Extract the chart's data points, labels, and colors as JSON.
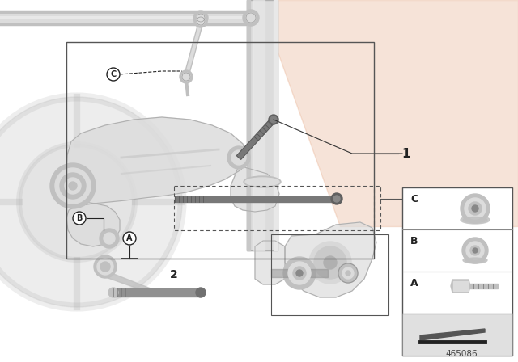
{
  "bg_color": "#e8e8e8",
  "white": "#ffffff",
  "light_gray": "#d4d4d4",
  "med_gray": "#b0b0b0",
  "dark_gray": "#808080",
  "part_light": "#dcdcdc",
  "part_mid": "#c0c0c0",
  "part_dark": "#909090",
  "line_color": "#222222",
  "orange_wm": "#e8b090",
  "part_number": "465086",
  "sidebar_divider": "#aaaaaa",
  "label_1": "1",
  "label_2": "2"
}
